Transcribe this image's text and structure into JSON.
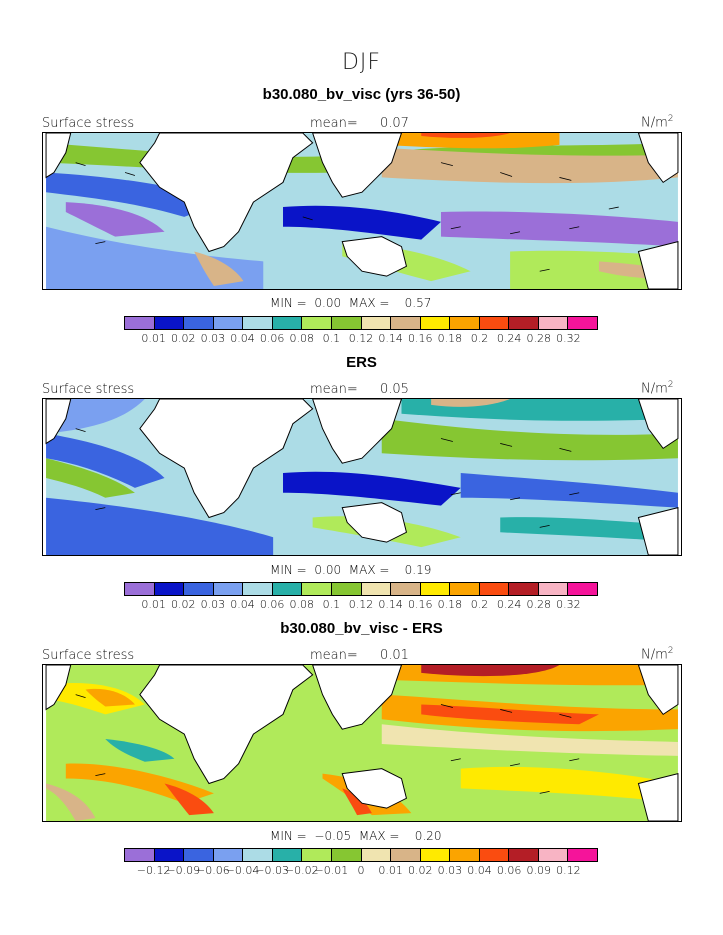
{
  "figure": {
    "title": "DJF"
  },
  "colors": [
    "#9b6fd8",
    "#0a14c8",
    "#3a64e0",
    "#7aa0f0",
    "#acdce6",
    "#28b0a8",
    "#b0ea5a",
    "#86c632",
    "#f0e4b0",
    "#d8b488",
    "#ffea00",
    "#fba400",
    "#fa4c10",
    "#b41e26",
    "#f8b4c4",
    "#f5149a"
  ],
  "panels": [
    {
      "title": "b30.080_bv_visc (yrs 36-50)",
      "left_label": "Surface stress",
      "mean_label": "mean=",
      "mean_value": "0.07",
      "units_base": "N/m",
      "units_exp": "2",
      "min_label": "MIN =",
      "min_value": "0.00",
      "max_label": "MAX =",
      "max_value": "0.57",
      "colorbar_ticks": [
        "0.01",
        "0.02",
        "0.03",
        "0.04",
        "0.06",
        "0.08",
        "0.1",
        "0.12",
        "0.14",
        "0.16",
        "0.18",
        "0.2",
        "0.24",
        "0.28",
        "0.32"
      ]
    },
    {
      "title": "ERS",
      "left_label": "Surface stress",
      "mean_label": "mean=",
      "mean_value": "0.05",
      "units_base": "N/m",
      "units_exp": "2",
      "min_label": "MIN =",
      "min_value": "0.00",
      "max_label": "MAX =",
      "max_value": "0.19",
      "colorbar_ticks": [
        "0.01",
        "0.02",
        "0.03",
        "0.04",
        "0.06",
        "0.08",
        "0.1",
        "0.12",
        "0.14",
        "0.16",
        "0.18",
        "0.2",
        "0.24",
        "0.28",
        "0.32"
      ]
    },
    {
      "title": "b30.080_bv_visc - ERS",
      "left_label": "Surface stress",
      "mean_label": "mean=",
      "mean_value": "0.01",
      "units_base": "N/m",
      "units_exp": "2",
      "min_label": "MIN =",
      "min_value": "−0.05",
      "max_label": "MAX =",
      "max_value": "0.20",
      "colorbar_ticks": [
        "−0.12",
        "−0.09",
        "−0.06",
        "−0.04",
        "−0.03",
        "−0.02",
        "−0.01",
        "0",
        "0.01",
        "0.02",
        "0.03",
        "0.04",
        "0.06",
        "0.09",
        "0.12"
      ]
    }
  ]
}
